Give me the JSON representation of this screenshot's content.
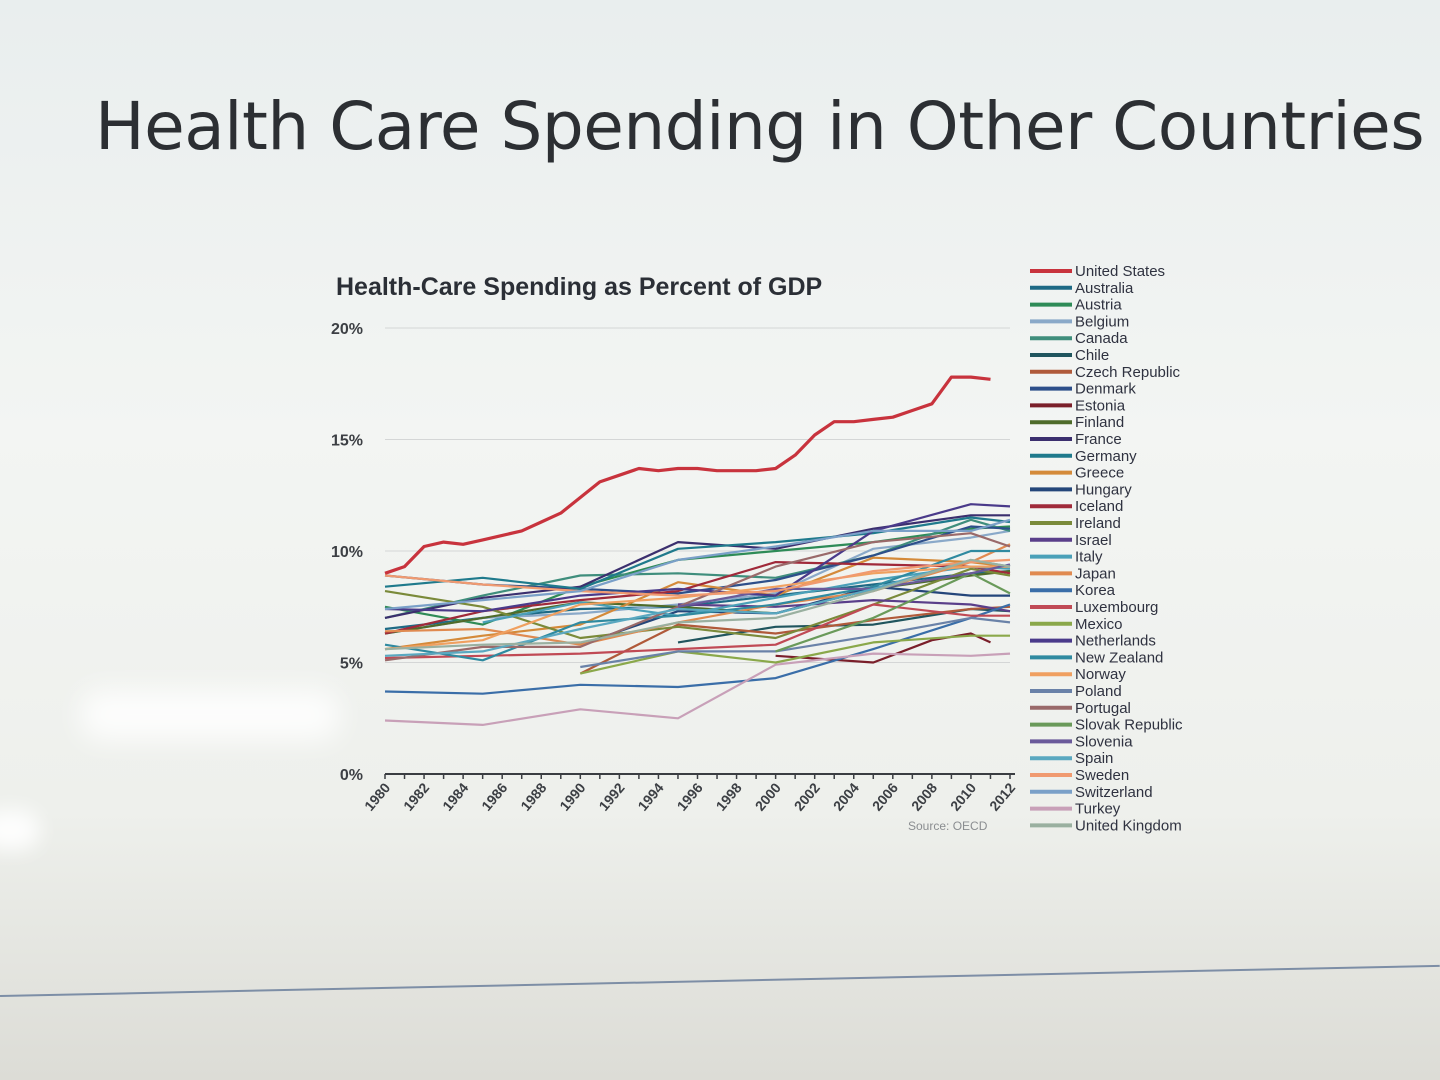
{
  "slide": {
    "title": "Health Care Spending in Other Countries"
  },
  "chart_data": {
    "type": "line",
    "title": "Health-Care Spending as Percent of GDP",
    "source": "Source: OECD",
    "ylim": [
      0,
      20
    ],
    "y_ticks": [
      "0%",
      "5%",
      "10%",
      "15%",
      "20%"
    ],
    "x_tick_labels": [
      "1980",
      "1982",
      "1984",
      "1986",
      "1988",
      "1990",
      "1992",
      "1994",
      "1996",
      "1998",
      "2000",
      "2002",
      "2004",
      "2006",
      "2008",
      "2010",
      "2012"
    ],
    "grid": "horizontal",
    "legend_position": "right",
    "series": [
      {
        "name": "United States",
        "color": "#c8333d",
        "x": [
          1980,
          1981,
          1982,
          1983,
          1984,
          1985,
          1986,
          1987,
          1988,
          1989,
          1990,
          1991,
          1992,
          1993,
          1994,
          1995,
          1996,
          1997,
          1998,
          1999,
          2000,
          2001,
          2002,
          2003,
          2004,
          2005,
          2006,
          2007,
          2008,
          2009,
          2010,
          2011
        ],
        "values": [
          9.0,
          9.3,
          10.2,
          10.4,
          10.3,
          10.5,
          10.7,
          10.9,
          11.3,
          11.7,
          12.4,
          13.1,
          13.4,
          13.7,
          13.6,
          13.7,
          13.7,
          13.6,
          13.6,
          13.6,
          13.7,
          14.3,
          15.2,
          15.8,
          15.8,
          15.9,
          16.0,
          16.3,
          16.6,
          17.8,
          17.8,
          17.7
        ]
      },
      {
        "name": "Australia",
        "color": "#1e6a85",
        "x": [
          1980,
          1985,
          1990,
          1995,
          2000,
          2005,
          2010,
          2012
        ],
        "values": [
          6.5,
          7.0,
          7.4,
          7.5,
          8.0,
          8.5,
          9.0,
          9.1
        ]
      },
      {
        "name": "Austria",
        "color": "#2e8b57",
        "x": [
          1980,
          1985,
          1990,
          1995,
          2000,
          2005,
          2010,
          2012
        ],
        "values": [
          7.5,
          6.7,
          8.4,
          9.6,
          10.0,
          10.4,
          11.0,
          11.1
        ]
      },
      {
        "name": "Belgium",
        "color": "#8aa9c9",
        "x": [
          1980,
          1985,
          1990,
          1995,
          2000,
          2005,
          2010,
          2012
        ],
        "values": [
          6.3,
          7.0,
          7.2,
          7.6,
          8.1,
          10.1,
          10.6,
          10.9
        ]
      },
      {
        "name": "Canada",
        "color": "#3f8e7c",
        "x": [
          1980,
          1985,
          1990,
          1995,
          2000,
          2005,
          2010,
          2012
        ],
        "values": [
          7.0,
          8.0,
          8.9,
          9.0,
          8.8,
          9.8,
          11.4,
          10.9
        ]
      },
      {
        "name": "Chile",
        "color": "#20555e",
        "x": [
          1995,
          2000,
          2005,
          2010,
          2012
        ],
        "values": [
          5.9,
          6.6,
          6.7,
          7.4,
          7.3
        ]
      },
      {
        "name": "Czech Republic",
        "color": "#b05a3a",
        "x": [
          1990,
          1995,
          2000,
          2005,
          2010,
          2012
        ],
        "values": [
          4.5,
          6.7,
          6.3,
          6.9,
          7.4,
          7.5
        ]
      },
      {
        "name": "Denmark",
        "color": "#2d4f8a",
        "x": [
          1980,
          1985,
          1990,
          1995,
          2000,
          2005,
          2010,
          2012
        ],
        "values": [
          8.9,
          8.5,
          8.3,
          8.1,
          8.7,
          9.8,
          11.1,
          11.0
        ]
      },
      {
        "name": "Estonia",
        "color": "#7a1f2a",
        "x": [
          2000,
          2005,
          2008,
          2010,
          2011
        ],
        "values": [
          5.3,
          5.0,
          6.0,
          6.3,
          5.9
        ]
      },
      {
        "name": "Finland",
        "color": "#4e6b2a",
        "x": [
          1980,
          1985,
          1990,
          1995,
          2000,
          2005,
          2010,
          2012
        ],
        "values": [
          6.3,
          7.0,
          7.7,
          7.5,
          7.2,
          8.3,
          8.9,
          9.1
        ]
      },
      {
        "name": "France",
        "color": "#3b2f6e",
        "x": [
          1980,
          1985,
          1990,
          1995,
          2000,
          2005,
          2010,
          2012
        ],
        "values": [
          7.0,
          7.9,
          8.4,
          10.4,
          10.1,
          11.0,
          11.6,
          11.6
        ]
      },
      {
        "name": "Germany",
        "color": "#1f7a8c",
        "x": [
          1980,
          1985,
          1990,
          1995,
          2000,
          2005,
          2010,
          2012
        ],
        "values": [
          8.4,
          8.8,
          8.3,
          10.1,
          10.4,
          10.8,
          11.5,
          11.3
        ]
      },
      {
        "name": "Greece",
        "color": "#d48a3a",
        "x": [
          1980,
          1985,
          1990,
          1995,
          2000,
          2005,
          2010,
          2012
        ],
        "values": [
          5.6,
          6.2,
          6.7,
          8.6,
          8.0,
          9.7,
          9.5,
          9.3
        ]
      },
      {
        "name": "Hungary",
        "color": "#24467a",
        "x": [
          1990,
          1995,
          2000,
          2005,
          2010,
          2012
        ],
        "values": [
          5.8,
          7.3,
          7.2,
          8.4,
          8.0,
          8.0
        ]
      },
      {
        "name": "Iceland",
        "color": "#a02a3a",
        "x": [
          1980,
          1985,
          1990,
          1995,
          2000,
          2005,
          2010,
          2012
        ],
        "values": [
          6.3,
          7.3,
          7.8,
          8.2,
          9.5,
          9.4,
          9.3,
          9.0
        ]
      },
      {
        "name": "Ireland",
        "color": "#7a8a3a",
        "x": [
          1980,
          1985,
          1990,
          1995,
          2000,
          2005,
          2010,
          2012
        ],
        "values": [
          8.2,
          7.5,
          6.1,
          6.6,
          6.1,
          7.6,
          9.2,
          8.9
        ]
      },
      {
        "name": "Israel",
        "color": "#5a3f8a",
        "x": [
          1995,
          2000,
          2005,
          2010,
          2012
        ],
        "values": [
          7.6,
          7.5,
          7.8,
          7.6,
          7.3
        ]
      },
      {
        "name": "Italy",
        "color": "#4aa0b8",
        "x": [
          1985,
          1990,
          1995,
          2000,
          2005,
          2010,
          2012
        ],
        "values": [
          6.8,
          7.7,
          7.1,
          7.9,
          8.7,
          9.3,
          9.2
        ]
      },
      {
        "name": "Japan",
        "color": "#e08a50",
        "x": [
          1980,
          1985,
          1990,
          1995,
          2000,
          2005,
          2010,
          2012
        ],
        "values": [
          6.4,
          6.5,
          5.8,
          6.8,
          7.6,
          8.2,
          9.5,
          10.3
        ]
      },
      {
        "name": "Korea",
        "color": "#3a6ea8",
        "x": [
          1980,
          1985,
          1990,
          1995,
          2000,
          2005,
          2010,
          2012
        ],
        "values": [
          3.7,
          3.6,
          4.0,
          3.9,
          4.3,
          5.6,
          7.0,
          7.6
        ]
      },
      {
        "name": "Luxembourg",
        "color": "#c04a55",
        "x": [
          1980,
          1985,
          1990,
          1995,
          2000,
          2005,
          2010,
          2012
        ],
        "values": [
          5.2,
          5.3,
          5.4,
          5.6,
          5.8,
          7.6,
          7.1,
          7.1
        ]
      },
      {
        "name": "Mexico",
        "color": "#8aa84a",
        "x": [
          1990,
          1995,
          2000,
          2005,
          2010,
          2012
        ],
        "values": [
          4.5,
          5.5,
          5.0,
          5.9,
          6.2,
          6.2
        ]
      },
      {
        "name": "Netherlands",
        "color": "#4a3a8a",
        "x": [
          1980,
          1985,
          1990,
          1995,
          2000,
          2005,
          2010,
          2012
        ],
        "values": [
          7.4,
          7.3,
          8.0,
          8.3,
          8.0,
          10.9,
          12.1,
          12.0
        ]
      },
      {
        "name": "New Zealand",
        "color": "#2f8aa0",
        "x": [
          1980,
          1985,
          1990,
          1995,
          2000,
          2005,
          2010,
          2012
        ],
        "values": [
          5.8,
          5.1,
          6.8,
          7.1,
          7.6,
          8.4,
          10.0,
          10.0
        ]
      },
      {
        "name": "Norway",
        "color": "#f0a060",
        "x": [
          1980,
          1985,
          1990,
          1995,
          2000,
          2005,
          2010,
          2012
        ],
        "values": [
          5.6,
          6.0,
          7.6,
          7.9,
          8.4,
          9.0,
          9.3,
          9.3
        ]
      },
      {
        "name": "Poland",
        "color": "#6a82a8",
        "x": [
          1990,
          1995,
          2000,
          2005,
          2010,
          2012
        ],
        "values": [
          4.8,
          5.5,
          5.5,
          6.2,
          7.0,
          6.8
        ]
      },
      {
        "name": "Portugal",
        "color": "#9a6a6a",
        "x": [
          1980,
          1985,
          1990,
          1995,
          2000,
          2005,
          2010,
          2012
        ],
        "values": [
          5.1,
          5.7,
          5.7,
          7.5,
          9.3,
          10.4,
          10.8,
          10.2
        ]
      },
      {
        "name": "Slovak Republic",
        "color": "#6a9a5a",
        "x": [
          2000,
          2005,
          2010,
          2012
        ],
        "values": [
          5.5,
          7.0,
          9.0,
          8.1
        ]
      },
      {
        "name": "Slovenia",
        "color": "#6a5a9a",
        "x": [
          1995,
          2000,
          2005,
          2010,
          2012
        ],
        "values": [
          7.5,
          8.3,
          8.3,
          9.0,
          9.4
        ]
      },
      {
        "name": "Spain",
        "color": "#5aa8c0",
        "x": [
          1980,
          1985,
          1990,
          1995,
          2000,
          2005,
          2010,
          2012
        ],
        "values": [
          5.3,
          5.5,
          6.5,
          7.4,
          7.2,
          8.3,
          9.6,
          9.3
        ]
      },
      {
        "name": "Sweden",
        "color": "#f09a70",
        "x": [
          1980,
          1985,
          1990,
          1995,
          2000,
          2005,
          2010,
          2012
        ],
        "values": [
          8.9,
          8.5,
          8.2,
          8.0,
          8.2,
          9.1,
          9.5,
          9.6
        ]
      },
      {
        "name": "Switzerland",
        "color": "#7aa0c8",
        "x": [
          1980,
          1985,
          1990,
          1995,
          2000,
          2005,
          2010,
          2012
        ],
        "values": [
          7.4,
          7.8,
          8.2,
          9.6,
          10.2,
          10.9,
          10.9,
          11.4
        ]
      },
      {
        "name": "Turkey",
        "color": "#c8a0b8",
        "x": [
          1980,
          1985,
          1990,
          1995,
          2000,
          2005,
          2010,
          2012
        ],
        "values": [
          2.4,
          2.2,
          2.9,
          2.5,
          4.9,
          5.4,
          5.3,
          5.4
        ]
      },
      {
        "name": "United Kingdom",
        "color": "#9ab0a0",
        "x": [
          1980,
          1985,
          1990,
          1995,
          2000,
          2005,
          2010,
          2012
        ],
        "values": [
          5.6,
          5.8,
          5.9,
          6.8,
          7.0,
          8.2,
          9.6,
          9.3
        ]
      }
    ]
  }
}
